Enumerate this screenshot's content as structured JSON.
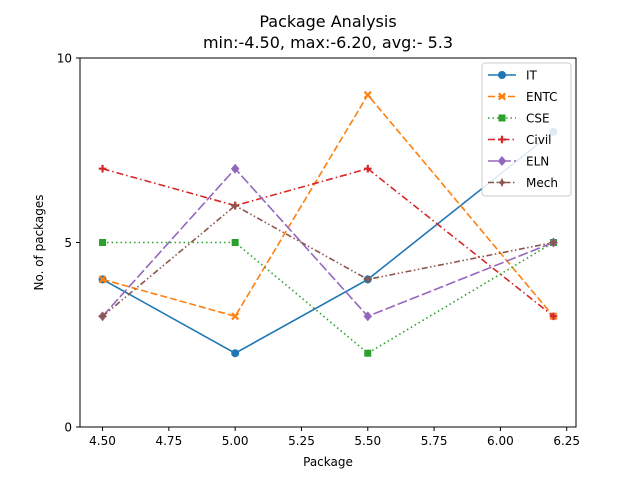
{
  "chart_data": {
    "type": "line",
    "title": "Package Analysis",
    "subtitle": "min:-4.50, max:-6.20, avg:- 5.3",
    "xlabel": "Package",
    "ylabel": "No. of packages",
    "x": [
      4.5,
      5.0,
      5.5,
      6.2
    ],
    "xlim": [
      4.415,
      6.285
    ],
    "ylim": [
      0,
      10
    ],
    "xticks": [
      "4.50",
      "4.75",
      "5.00",
      "5.25",
      "5.50",
      "5.75",
      "6.00",
      "6.25"
    ],
    "xtick_values": [
      4.5,
      4.75,
      5.0,
      5.25,
      5.5,
      5.75,
      6.0,
      6.25
    ],
    "yticks": [
      "0",
      "5",
      "10"
    ],
    "ytick_values": [
      0,
      5,
      10
    ],
    "grid": false,
    "legend_position": "top-right",
    "series": [
      {
        "name": "IT",
        "values": [
          4,
          2,
          4,
          8
        ],
        "color": "#1f77b4",
        "dash": "solid",
        "marker": "circle"
      },
      {
        "name": "ENTC",
        "values": [
          4,
          3,
          9,
          3
        ],
        "color": "#ff7f0e",
        "dash": "dashed",
        "marker": "x"
      },
      {
        "name": "CSE",
        "values": [
          5,
          5,
          2,
          5
        ],
        "color": "#2ca02c",
        "dash": "dotted",
        "marker": "square"
      },
      {
        "name": "Civil",
        "values": [
          7,
          6,
          7,
          3
        ],
        "color": "#d62728",
        "dash": "dashdot",
        "marker": "plus"
      },
      {
        "name": "ELN",
        "values": [
          3,
          7,
          3,
          5
        ],
        "color": "#9467bd",
        "dash": "longdash",
        "marker": "diamond"
      },
      {
        "name": "Mech",
        "values": [
          3,
          6,
          4,
          5
        ],
        "color": "#8c564b",
        "dash": "dashdotdot",
        "marker": "star"
      }
    ]
  }
}
